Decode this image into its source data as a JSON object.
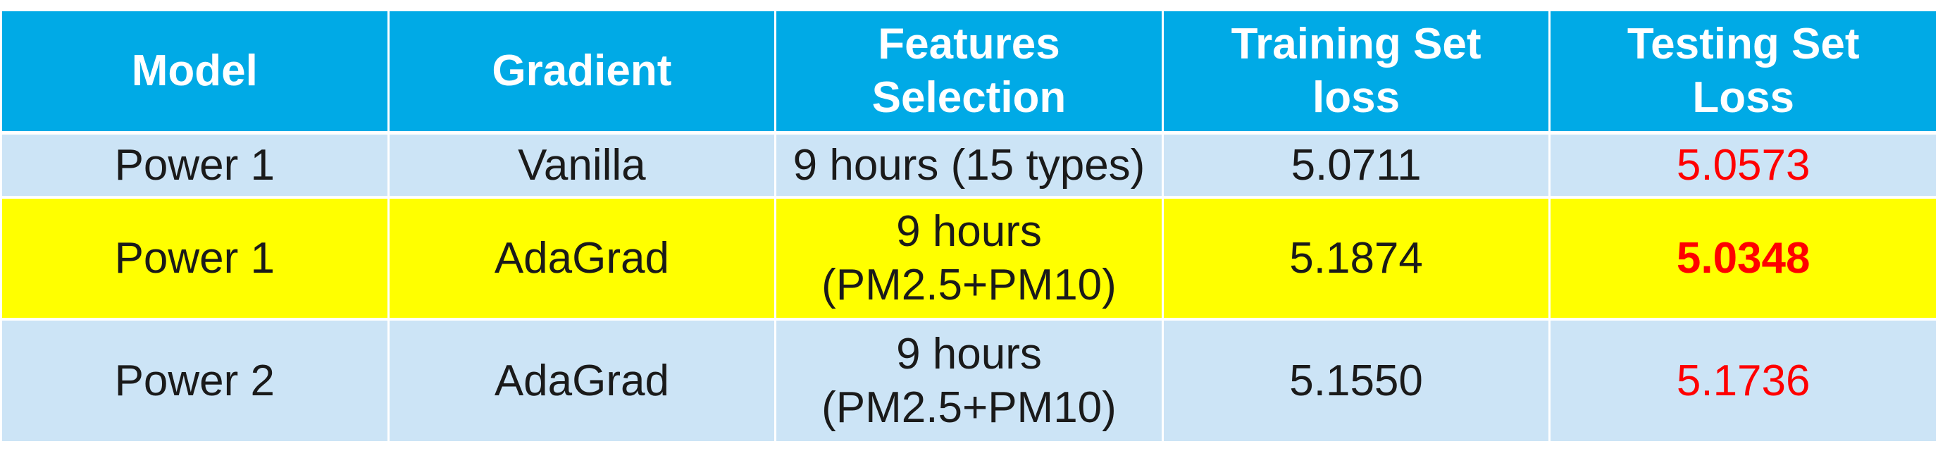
{
  "table": {
    "headers": [
      "Model",
      "Gradient",
      "Features\nSelection",
      "Training Set\nloss",
      "Testing Set\nLoss"
    ],
    "rows": [
      {
        "model": "Power 1",
        "gradient": "Vanilla",
        "features": "9 hours (15 types)",
        "training_loss": "5.0711",
        "testing_loss": "5.0573"
      },
      {
        "model": "Power 1",
        "gradient": "AdaGrad",
        "features": "9 hours\n(PM2.5+PM10)",
        "training_loss": "5.1874",
        "testing_loss": "5.0348"
      },
      {
        "model": "Power 2",
        "gradient": "AdaGrad",
        "features": "9 hours\n(PM2.5+PM10)",
        "training_loss": "5.1550",
        "testing_loss": "5.1736"
      }
    ]
  },
  "colors": {
    "header_bg": "#00aae6",
    "header_text": "#ffffff",
    "row_bg": "#cce4f6",
    "highlight_row_bg": "#ffff00",
    "testing_loss_text": "#ff0000"
  }
}
